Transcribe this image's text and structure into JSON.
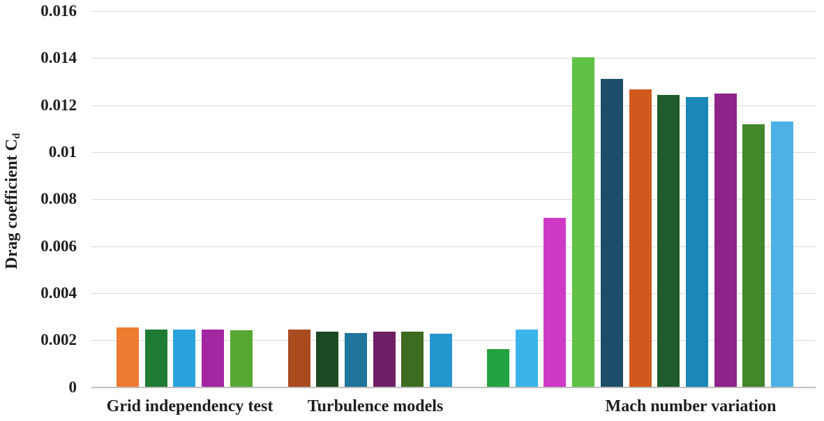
{
  "figure": {
    "ylabel_main": "Drag coefficient C",
    "ylabel_sub": "d"
  },
  "chart_data": {
    "type": "bar",
    "title": "",
    "xlabel": "",
    "ylabel": "Drag coefficient C_d",
    "ylim": [
      0,
      0.016
    ],
    "ytick_step": 0.002,
    "grid": true,
    "legend": false,
    "background_color": "#ffffff",
    "gridline_color": "#d9d9d9",
    "axis_line_color": "#bfbfbf",
    "text_color": "#1f1f1f",
    "yticks": [
      {
        "label": "0.016",
        "value": 0.016
      },
      {
        "label": "0.014",
        "value": 0.014
      },
      {
        "label": "0.012",
        "value": 0.012
      },
      {
        "label": "0.01",
        "value": 0.01
      },
      {
        "label": "0.008",
        "value": 0.008
      },
      {
        "label": "0.006",
        "value": 0.006
      },
      {
        "label": "0.004",
        "value": 0.004
      },
      {
        "label": "0.002",
        "value": 0.002
      },
      {
        "label": "0",
        "value": 0
      }
    ],
    "groups": [
      {
        "label": "Grid independency test",
        "bars": [
          {
            "value": 0.00253,
            "color": "#ED7D31"
          },
          {
            "value": 0.00246,
            "color": "#1E7B34"
          },
          {
            "value": 0.00245,
            "color": "#29A3DC"
          },
          {
            "value": 0.00245,
            "color": "#A227A0"
          },
          {
            "value": 0.00243,
            "color": "#57A733"
          }
        ]
      },
      {
        "label": "Turbulence models",
        "bars": [
          {
            "value": 0.00246,
            "color": "#A94A1F"
          },
          {
            "value": 0.00235,
            "color": "#1C4A22"
          },
          {
            "value": 0.00231,
            "color": "#20759B"
          },
          {
            "value": 0.00236,
            "color": "#6E2066"
          },
          {
            "value": 0.00236,
            "color": "#3D6B20"
          },
          {
            "value": 0.00226,
            "color": "#2496CE"
          }
        ]
      },
      {
        "label": "Mach number variation",
        "bars": [
          {
            "value": 0.00163,
            "color": "#23A33F"
          },
          {
            "value": 0.00245,
            "color": "#3BB4EB"
          },
          {
            "value": 0.00722,
            "color": "#CE3AC6"
          },
          {
            "value": 0.01403,
            "color": "#5FC145"
          },
          {
            "value": 0.01312,
            "color": "#1D4D68"
          },
          {
            "value": 0.01266,
            "color": "#D2591D"
          },
          {
            "value": 0.01243,
            "color": "#1E5C2C"
          },
          {
            "value": 0.01235,
            "color": "#1A87B9"
          },
          {
            "value": 0.01249,
            "color": "#8C2489"
          },
          {
            "value": 0.01119,
            "color": "#44862A"
          },
          {
            "value": 0.01131,
            "color": "#4DB1E6"
          }
        ]
      }
    ]
  }
}
